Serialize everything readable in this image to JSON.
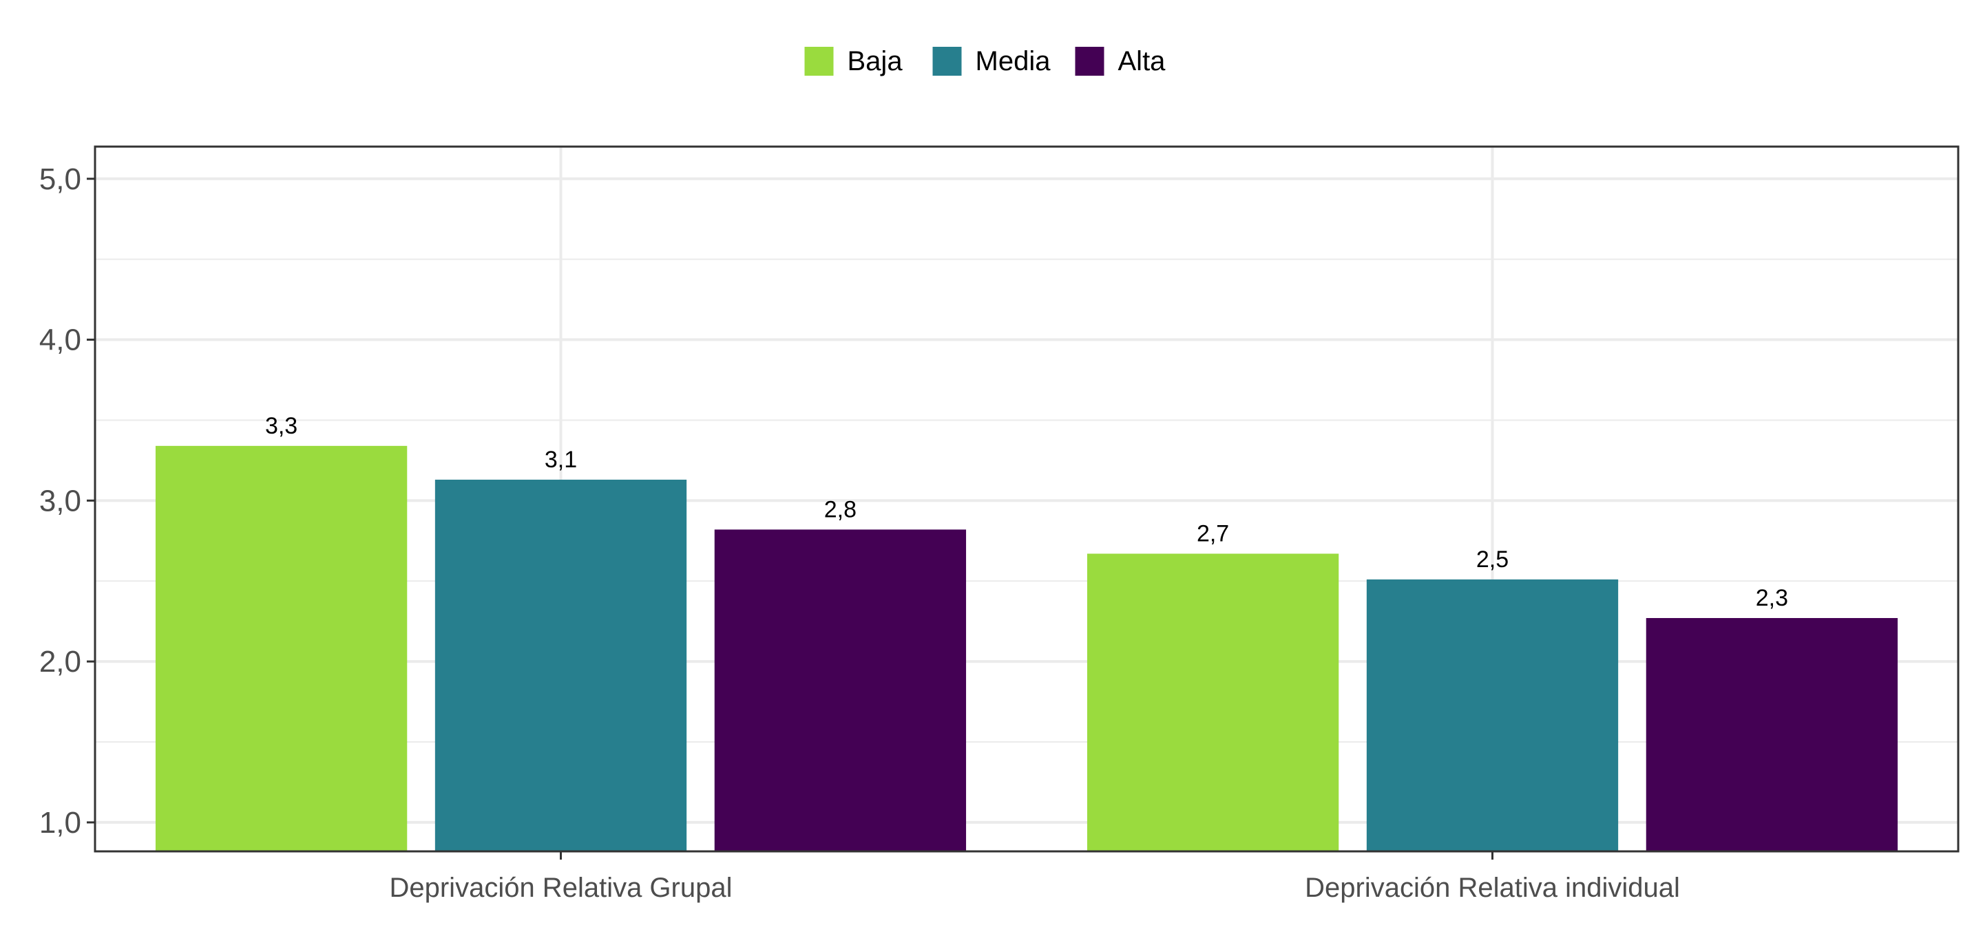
{
  "chart_data": {
    "type": "bar",
    "categories": [
      "Deprivación Relativa Grupal",
      "Deprivación Relativa individual"
    ],
    "series": [
      {
        "name": "Baja",
        "values": [
          3.34,
          2.67
        ],
        "labels": [
          "3,3",
          "2,7"
        ],
        "color": "#9ADB3E"
      },
      {
        "name": "Media",
        "values": [
          3.13,
          2.51
        ],
        "labels": [
          "3,1",
          "2,5"
        ],
        "color": "#277F8E"
      },
      {
        "name": "Alta",
        "values": [
          2.82,
          2.27
        ],
        "labels": [
          "2,8",
          "2,3"
        ],
        "color": "#440154"
      }
    ],
    "title": "",
    "xlabel": "",
    "ylabel": "",
    "ylim": [
      0.82,
      5.2
    ],
    "yticks": [
      1,
      2,
      3,
      4,
      5
    ],
    "ytick_labels": [
      "1,0",
      "2,0",
      "3,0",
      "4,0",
      "5,0"
    ],
    "grid": true,
    "legend_position": "top"
  }
}
